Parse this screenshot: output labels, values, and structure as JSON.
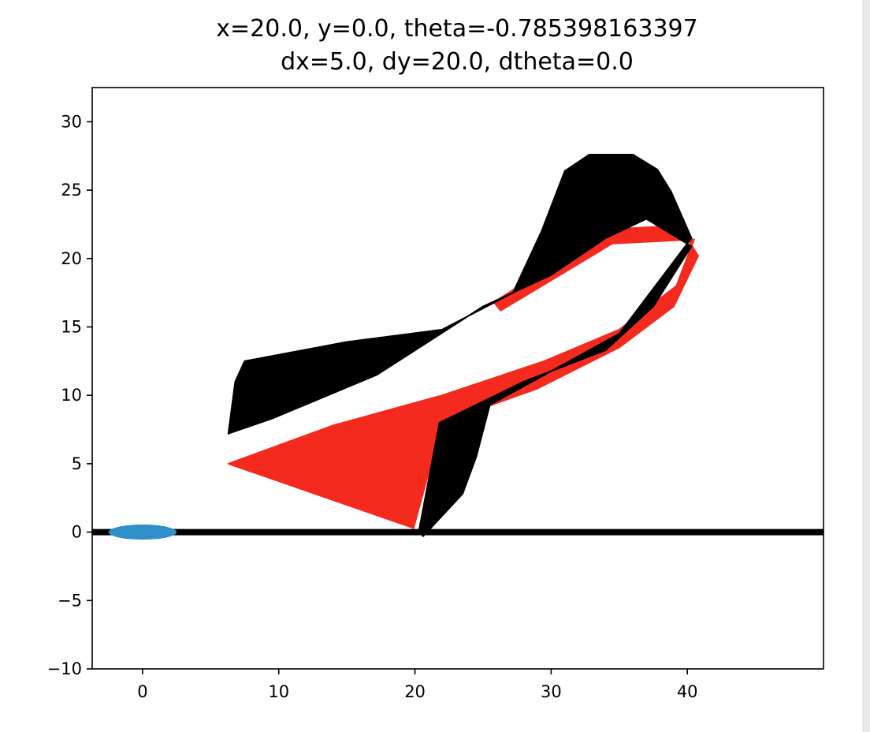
{
  "chart_data": {
    "type": "scatter",
    "title_lines": [
      "x=20.0, y=0.0, theta=-0.785398163397",
      "dx=5.0, dy=20.0, dtheta=0.0"
    ],
    "xlabel": "",
    "ylabel": "",
    "xlim": [
      -3.7,
      50
    ],
    "ylim": [
      -10,
      32.5
    ],
    "x_ticks": [
      0,
      10,
      20,
      30,
      40
    ],
    "x_tick_labels": [
      "0",
      "10",
      "20",
      "30",
      "40"
    ],
    "y_ticks": [
      -10,
      -5,
      0,
      5,
      10,
      15,
      20,
      25,
      30
    ],
    "y_tick_labels": [
      "−10",
      "−5",
      "0",
      "5",
      "10",
      "15",
      "20",
      "25",
      "30"
    ],
    "grid": false,
    "ground_line": {
      "y": 0,
      "x_range": [
        -3.7,
        50
      ],
      "color": "#000000"
    },
    "origin_ellipse": {
      "cx": 0,
      "cy": 0,
      "rx": 2.5,
      "ry": 0.55,
      "color": "#2f8fc9"
    },
    "series": [
      {
        "color": "#000000",
        "marker": "triangle",
        "band": {
          "upper": [
            [
              20.6,
              -0.3
            ],
            [
              23.5,
              2.8
            ],
            [
              24.5,
              5.5
            ],
            [
              25.5,
              9.3
            ],
            [
              35,
              14.5
            ],
            [
              40.3,
              21.5
            ],
            [
              38.8,
              24.9
            ],
            [
              37.8,
              26.5
            ],
            [
              36,
              27.6
            ],
            [
              32.8,
              27.6
            ],
            [
              31,
              26.4
            ],
            [
              29.3,
              22
            ],
            [
              27.2,
              17.5
            ],
            [
              22,
              14.8
            ],
            [
              15,
              13.9
            ],
            [
              7.5,
              12.5
            ],
            [
              6.8,
              11
            ]
          ],
          "lower": [
            [
              20.3,
              0.1
            ],
            [
              21.8,
              8
            ],
            [
              28,
              11
            ],
            [
              34,
              13.3
            ],
            [
              37.5,
              16.5
            ],
            [
              40.3,
              20.9
            ],
            [
              37,
              22.9
            ],
            [
              34,
              21.5
            ],
            [
              30,
              18.8
            ],
            [
              25,
              16.5
            ],
            [
              17.2,
              11.5
            ],
            [
              9.5,
              8.3
            ],
            [
              6.3,
              7.2
            ]
          ]
        }
      },
      {
        "color": "#f52a1f",
        "marker": "triangle",
        "band": {
          "upper": [
            [
              19.9,
              0.3
            ],
            [
              22,
              8
            ],
            [
              29,
              10.5
            ],
            [
              35,
              13.5
            ],
            [
              39,
              16.5
            ],
            [
              40.8,
              20.2
            ],
            [
              39.4,
              22.4
            ],
            [
              35.5,
              22.2
            ],
            [
              30,
              19.5
            ],
            [
              25.8,
              16.8
            ]
          ],
          "lower": [
            [
              6.3,
              5
            ],
            [
              14,
              7.8
            ],
            [
              22,
              10
            ],
            [
              29.5,
              12.5
            ],
            [
              35,
              14.8
            ],
            [
              39.2,
              18
            ],
            [
              40.5,
              21.4
            ],
            [
              34.5,
              21.1
            ],
            [
              26.3,
              16.2
            ]
          ]
        }
      }
    ]
  }
}
